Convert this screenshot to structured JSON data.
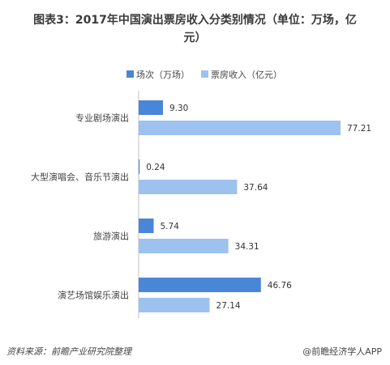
{
  "title_line1": "图表3：2017年中国演出票房收入分类别情况（单位：万场，亿",
  "title_line2": "元）",
  "source": "资料来源：前瞻产业研究院整理",
  "watermark": "@前瞻经济学人APP",
  "chart_data": {
    "type": "bar",
    "orientation": "horizontal",
    "title": "图表3：2017年中国演出票房收入分类别情况（单位：万场，亿元）",
    "categories": [
      "专业剧场演出",
      "大型演唱会、音乐节演出",
      "旅游演出",
      "演艺场馆娱乐演出"
    ],
    "series": [
      {
        "name": "场次（万场）",
        "values": [
          9.3,
          0.24,
          5.74,
          46.76
        ],
        "labels": [
          "9.30",
          "0.24",
          "5.74",
          "46.76"
        ],
        "color": "#4a86d8"
      },
      {
        "name": "票房收入（亿元）",
        "values": [
          77.21,
          37.64,
          34.31,
          27.14
        ],
        "labels": [
          "77.21",
          "37.64",
          "34.31",
          "27.14"
        ],
        "color": "#9dc2f0"
      }
    ],
    "xlim": [
      0,
      80
    ],
    "legend_position": "top-center",
    "grid": false
  }
}
